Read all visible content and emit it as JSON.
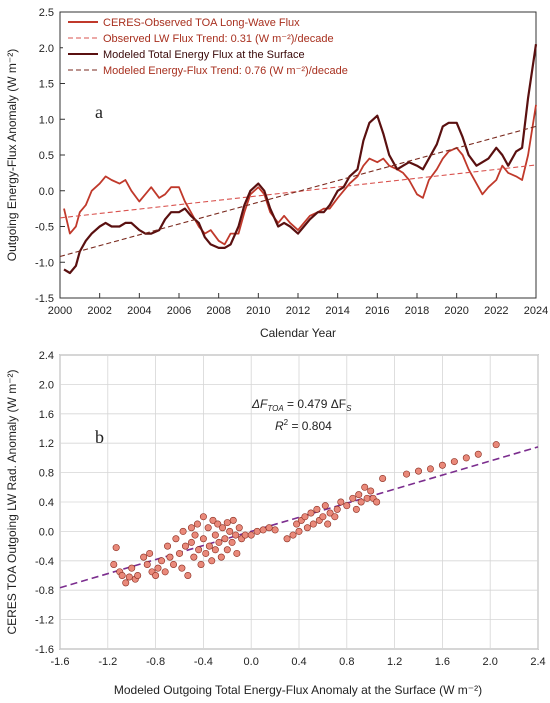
{
  "chart_data": [
    {
      "type": "line",
      "panel_label": "a",
      "xlabel": "Calendar Year",
      "ylabel": "Outgoing Energy-Flux Anomaly (W m⁻²)",
      "xlim": [
        2000,
        2024
      ],
      "ylim": [
        -1.5,
        2.5
      ],
      "xticks": [
        2000,
        2002,
        2004,
        2006,
        2008,
        2010,
        2012,
        2014,
        2016,
        2018,
        2020,
        2022,
        2024
      ],
      "yticks": [
        -1.5,
        -1.0,
        -0.5,
        0.0,
        0.5,
        1.0,
        1.5,
        2.0,
        2.5
      ],
      "ytick_labels": [
        "-1.5",
        "-1.0",
        "-0.5",
        "0.0",
        "0.5",
        "1.0",
        "1.5",
        "2.0",
        "2.5"
      ],
      "grid": false,
      "legend_position": "top-left",
      "series": [
        {
          "name": "CERES-Observed TOA Long-Wave Flux",
          "color": "#c0392b",
          "style": "solid",
          "x": [
            2000.2,
            2000.5,
            2000.8,
            2001.0,
            2001.3,
            2001.6,
            2002.0,
            2002.3,
            2002.6,
            2003.0,
            2003.3,
            2003.6,
            2004.0,
            2004.3,
            2004.6,
            2005.0,
            2005.3,
            2005.6,
            2006.0,
            2006.3,
            2006.6,
            2007.0,
            2007.3,
            2007.6,
            2008.0,
            2008.3,
            2008.6,
            2009.0,
            2009.3,
            2009.6,
            2010.0,
            2010.3,
            2010.6,
            2011.0,
            2011.3,
            2011.6,
            2012.0,
            2012.3,
            2012.6,
            2013.0,
            2013.3,
            2013.6,
            2014.0,
            2014.3,
            2014.6,
            2015.0,
            2015.3,
            2015.6,
            2016.0,
            2016.3,
            2016.6,
            2017.0,
            2017.3,
            2017.6,
            2018.0,
            2018.3,
            2018.6,
            2019.0,
            2019.3,
            2019.6,
            2020.0,
            2020.3,
            2020.6,
            2021.0,
            2021.3,
            2021.6,
            2022.0,
            2022.3,
            2022.6,
            2023.0,
            2023.3,
            2023.6,
            2024.0
          ],
          "y": [
            -0.25,
            -0.6,
            -0.5,
            -0.3,
            -0.2,
            0.0,
            0.1,
            0.2,
            0.15,
            0.1,
            0.15,
            0.0,
            -0.15,
            -0.05,
            0.05,
            -0.1,
            -0.05,
            0.05,
            0.05,
            -0.15,
            -0.3,
            -0.5,
            -0.6,
            -0.55,
            -0.7,
            -0.75,
            -0.6,
            -0.6,
            -0.3,
            -0.05,
            0.05,
            -0.05,
            -0.3,
            -0.45,
            -0.35,
            -0.45,
            -0.55,
            -0.45,
            -0.35,
            -0.3,
            -0.25,
            -0.25,
            -0.1,
            0.0,
            0.1,
            0.2,
            0.35,
            0.45,
            0.4,
            0.45,
            0.35,
            0.3,
            0.25,
            0.15,
            -0.05,
            -0.1,
            0.15,
            0.3,
            0.45,
            0.55,
            0.6,
            0.5,
            0.3,
            0.1,
            -0.05,
            0.05,
            0.15,
            0.35,
            0.25,
            0.2,
            0.15,
            0.5,
            1.2
          ]
        },
        {
          "name": "Observed LW Flux Trend: 0.31 (W m⁻²)/decade",
          "color": "#d9534f",
          "style": "dashed",
          "x": [
            2000,
            2024
          ],
          "y": [
            -0.38,
            0.36
          ]
        },
        {
          "name": "Modeled Total Energy Flux at the Surface",
          "color": "#5a1010",
          "style": "solid",
          "x": [
            2000.2,
            2000.5,
            2000.8,
            2001.0,
            2001.3,
            2001.6,
            2002.0,
            2002.3,
            2002.6,
            2003.0,
            2003.3,
            2003.6,
            2004.0,
            2004.3,
            2004.6,
            2005.0,
            2005.3,
            2005.6,
            2006.0,
            2006.3,
            2006.6,
            2007.0,
            2007.3,
            2007.6,
            2008.0,
            2008.3,
            2008.6,
            2009.0,
            2009.3,
            2009.6,
            2010.0,
            2010.3,
            2010.6,
            2011.0,
            2011.3,
            2011.6,
            2012.0,
            2012.3,
            2012.6,
            2013.0,
            2013.3,
            2013.6,
            2014.0,
            2014.3,
            2014.6,
            2015.0,
            2015.3,
            2015.6,
            2016.0,
            2016.3,
            2016.6,
            2017.0,
            2017.3,
            2017.6,
            2018.0,
            2018.3,
            2018.6,
            2019.0,
            2019.3,
            2019.6,
            2020.0,
            2020.3,
            2020.6,
            2021.0,
            2021.3,
            2021.6,
            2022.0,
            2022.3,
            2022.6,
            2023.0,
            2023.3,
            2023.6,
            2024.0
          ],
          "y": [
            -1.1,
            -1.15,
            -1.05,
            -0.85,
            -0.7,
            -0.6,
            -0.5,
            -0.45,
            -0.5,
            -0.5,
            -0.45,
            -0.45,
            -0.55,
            -0.6,
            -0.6,
            -0.55,
            -0.4,
            -0.3,
            -0.3,
            -0.25,
            -0.35,
            -0.45,
            -0.65,
            -0.75,
            -0.8,
            -0.8,
            -0.75,
            -0.5,
            -0.2,
            0.0,
            0.1,
            0.0,
            -0.25,
            -0.5,
            -0.45,
            -0.5,
            -0.6,
            -0.5,
            -0.4,
            -0.3,
            -0.3,
            -0.2,
            0.0,
            0.05,
            0.2,
            0.3,
            0.7,
            0.95,
            1.05,
            0.8,
            0.5,
            0.3,
            0.35,
            0.4,
            0.35,
            0.3,
            0.45,
            0.65,
            0.9,
            0.95,
            0.95,
            0.75,
            0.5,
            0.35,
            0.4,
            0.45,
            0.6,
            0.5,
            0.35,
            0.55,
            0.6,
            1.3,
            2.05
          ]
        },
        {
          "name": "Modeled Energy-Flux Trend: 0.76 (W m⁻²)/decade",
          "color": "#7a2a1f",
          "style": "dashed",
          "x": [
            2000,
            2024
          ],
          "y": [
            -0.92,
            0.9
          ]
        }
      ]
    },
    {
      "type": "scatter",
      "panel_label": "b",
      "xlabel": "Modeled Outgoing Total Energy-Flux Anomaly at the Surface (W m⁻²)",
      "ylabel": "CERES TOA Outgoing LW Rad. Anomaly (W m⁻²)",
      "xlim": [
        -1.6,
        2.4
      ],
      "ylim": [
        -1.6,
        2.4
      ],
      "xticks": [
        -1.6,
        -1.2,
        -0.8,
        -0.4,
        0.0,
        0.4,
        0.8,
        1.2,
        1.6,
        2.0,
        2.4
      ],
      "yticks": [
        -1.6,
        -1.2,
        -0.8,
        -0.4,
        0.0,
        0.4,
        0.8,
        1.2,
        1.6,
        2.0,
        2.4
      ],
      "tick_labels": [
        "-1.6",
        "-1.2",
        "-0.8",
        "-0.4",
        "0.0",
        "0.4",
        "0.8",
        "1.2",
        "1.6",
        "2.0",
        "2.4"
      ],
      "grid": true,
      "equation_lhs": "ΔF",
      "equation_lhs_sub": "TOA",
      "equation_mid": " = 0.479 ΔF",
      "equation_rhs_sub": "S",
      "r2_label": "R",
      "r2_sup": "2",
      "r2_value": " = 0.804",
      "point_color": "#e9897a",
      "point_edge": "#8a2d20",
      "fit_line": {
        "color": "#7b2d8e",
        "style": "dashed",
        "slope": 0.479,
        "x": [
          -1.6,
          2.4
        ]
      },
      "points": [
        [
          -1.15,
          -0.45
        ],
        [
          -1.13,
          -0.22
        ],
        [
          -1.1,
          -0.55
        ],
        [
          -1.08,
          -0.6
        ],
        [
          -1.05,
          -0.7
        ],
        [
          -1.02,
          -0.62
        ],
        [
          -1.0,
          -0.5
        ],
        [
          -0.97,
          -0.65
        ],
        [
          -0.95,
          -0.6
        ],
        [
          -0.9,
          -0.35
        ],
        [
          -0.87,
          -0.45
        ],
        [
          -0.85,
          -0.3
        ],
        [
          -0.83,
          -0.55
        ],
        [
          -0.8,
          -0.6
        ],
        [
          -0.78,
          -0.5
        ],
        [
          -0.75,
          -0.4
        ],
        [
          -0.72,
          -0.55
        ],
        [
          -0.7,
          -0.2
        ],
        [
          -0.68,
          -0.35
        ],
        [
          -0.65,
          -0.45
        ],
        [
          -0.63,
          -0.1
        ],
        [
          -0.6,
          -0.3
        ],
        [
          -0.58,
          -0.5
        ],
        [
          -0.57,
          0.0
        ],
        [
          -0.55,
          -0.2
        ],
        [
          -0.53,
          -0.6
        ],
        [
          -0.5,
          -0.15
        ],
        [
          -0.5,
          0.05
        ],
        [
          -0.48,
          -0.35
        ],
        [
          -0.47,
          -0.05
        ],
        [
          -0.45,
          0.1
        ],
        [
          -0.44,
          -0.25
        ],
        [
          -0.42,
          -0.45
        ],
        [
          -0.4,
          0.2
        ],
        [
          -0.4,
          -0.1
        ],
        [
          -0.38,
          -0.3
        ],
        [
          -0.36,
          0.05
        ],
        [
          -0.35,
          -0.2
        ],
        [
          -0.33,
          -0.4
        ],
        [
          -0.32,
          0.15
        ],
        [
          -0.3,
          -0.05
        ],
        [
          -0.3,
          -0.25
        ],
        [
          -0.28,
          0.1
        ],
        [
          -0.27,
          -0.15
        ],
        [
          -0.25,
          -0.35
        ],
        [
          -0.24,
          0.05
        ],
        [
          -0.22,
          -0.1
        ],
        [
          -0.2,
          0.12
        ],
        [
          -0.2,
          -0.25
        ],
        [
          -0.18,
          0.0
        ],
        [
          -0.16,
          -0.15
        ],
        [
          -0.15,
          0.15
        ],
        [
          -0.13,
          -0.05
        ],
        [
          -0.12,
          -0.3
        ],
        [
          -0.1,
          0.05
        ],
        [
          -0.08,
          -0.1
        ],
        [
          -0.05,
          -0.05
        ],
        [
          0.0,
          -0.05
        ],
        [
          0.05,
          0.0
        ],
        [
          0.1,
          0.02
        ],
        [
          0.15,
          0.05
        ],
        [
          0.2,
          0.02
        ],
        [
          0.3,
          -0.1
        ],
        [
          0.35,
          -0.05
        ],
        [
          0.38,
          0.1
        ],
        [
          0.4,
          0.0
        ],
        [
          0.42,
          0.15
        ],
        [
          0.45,
          0.2
        ],
        [
          0.47,
          0.05
        ],
        [
          0.5,
          0.25
        ],
        [
          0.52,
          0.1
        ],
        [
          0.55,
          0.3
        ],
        [
          0.57,
          0.15
        ],
        [
          0.6,
          0.2
        ],
        [
          0.62,
          0.35
        ],
        [
          0.64,
          0.1
        ],
        [
          0.66,
          0.25
        ],
        [
          0.7,
          0.2
        ],
        [
          0.72,
          0.3
        ],
        [
          0.75,
          0.4
        ],
        [
          0.8,
          0.35
        ],
        [
          0.85,
          0.45
        ],
        [
          0.88,
          0.3
        ],
        [
          0.9,
          0.5
        ],
        [
          0.92,
          0.4
        ],
        [
          0.95,
          0.6
        ],
        [
          0.97,
          0.45
        ],
        [
          1.0,
          0.55
        ],
        [
          1.02,
          0.45
        ],
        [
          1.05,
          0.4
        ],
        [
          1.1,
          0.72
        ],
        [
          1.3,
          0.78
        ],
        [
          1.4,
          0.82
        ],
        [
          1.5,
          0.85
        ],
        [
          1.6,
          0.9
        ],
        [
          1.7,
          0.95
        ],
        [
          1.8,
          1.0
        ],
        [
          1.9,
          1.05
        ],
        [
          2.05,
          1.18
        ]
      ]
    }
  ]
}
